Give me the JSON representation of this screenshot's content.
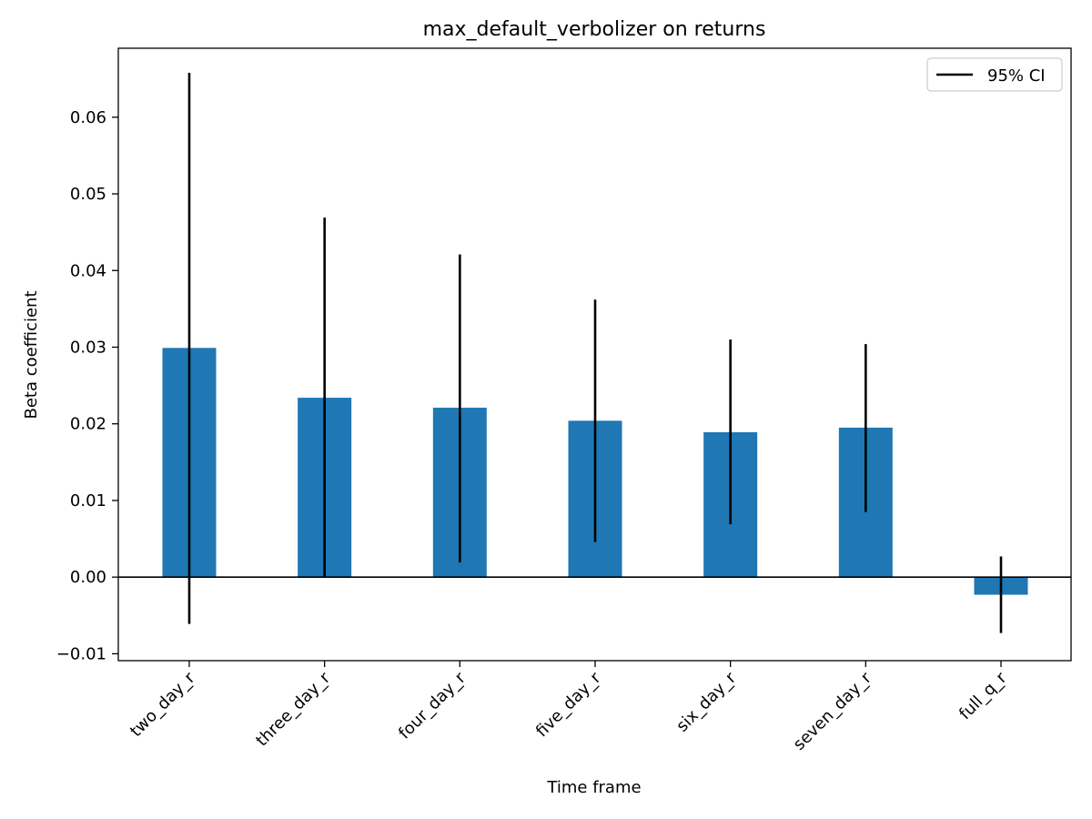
{
  "chart_data": {
    "type": "bar",
    "title": "max_default_verbolizer on returns",
    "xlabel": "Time frame",
    "ylabel": "Beta coefficient",
    "categories": [
      "two_day_r",
      "three_day_r",
      "four_day_r",
      "five_day_r",
      "six_day_r",
      "seven_day_r",
      "full_q_r"
    ],
    "series": [
      {
        "values": [
          0.0299,
          0.0234,
          0.0221,
          0.0204,
          0.0189,
          0.0195,
          -0.0023
        ],
        "ci_low": [
          -0.0061,
          -0.0001,
          0.0019,
          0.0046,
          0.0069,
          0.0085,
          -0.0073
        ],
        "ci_high": [
          0.0658,
          0.0469,
          0.0421,
          0.0362,
          0.031,
          0.0304,
          0.0027
        ]
      }
    ],
    "ylim": [
      -0.0109,
      0.069
    ],
    "yticks": [
      -0.01,
      0.0,
      0.01,
      0.02,
      0.03,
      0.04,
      0.05,
      0.06
    ],
    "ytick_labels": [
      "−0.01",
      "0.00",
      "0.01",
      "0.02",
      "0.03",
      "0.04",
      "0.05",
      "0.06"
    ],
    "zero_line": true,
    "grid": false,
    "legend": {
      "position": "top-right",
      "entries": [
        "95% CI"
      ]
    },
    "colors": {
      "bar": "#1f77b4",
      "errorbar": "#000000",
      "axes": "#000000"
    }
  }
}
